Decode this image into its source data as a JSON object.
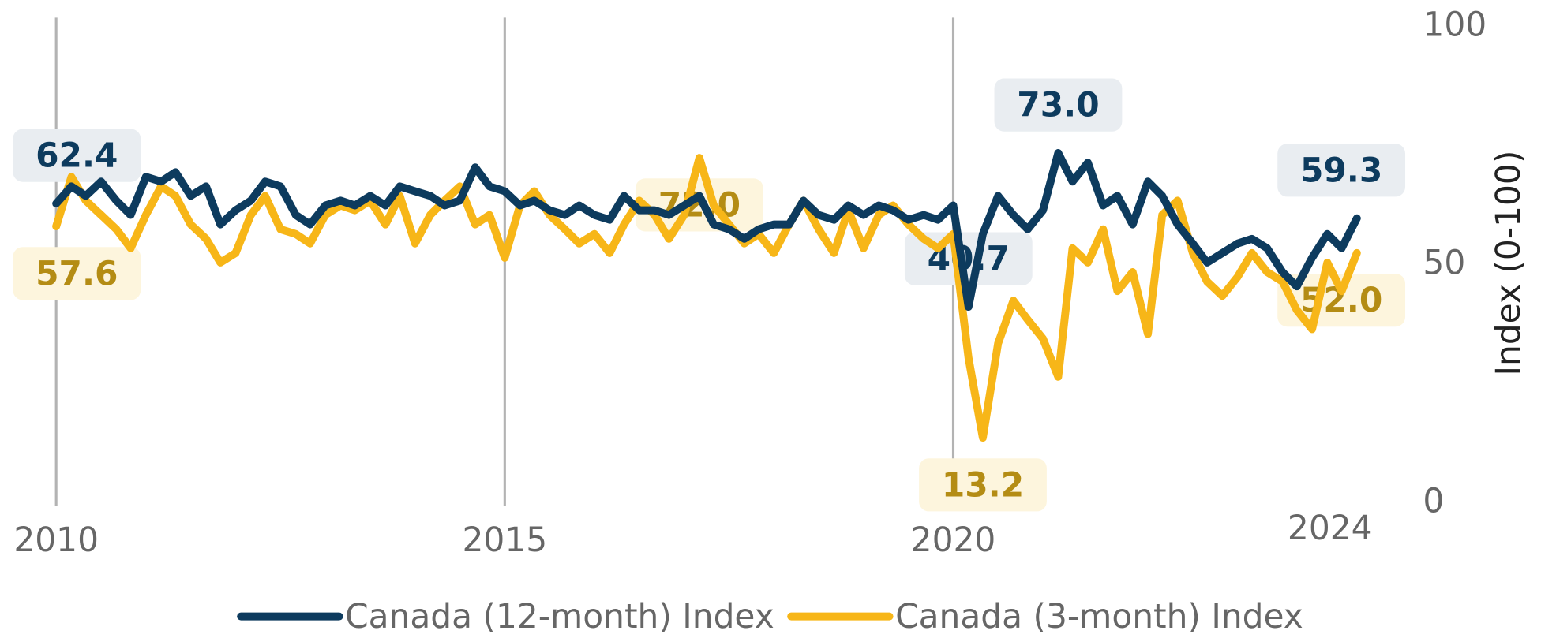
{
  "chart_data": {
    "type": "line",
    "y_axis_label": "Index (0-100)",
    "ylim": [
      0,
      100
    ],
    "yticks": [
      0,
      50,
      100
    ],
    "xlim": [
      2009.9,
      2024.9
    ],
    "xticks": [
      2010,
      2015,
      2020
    ],
    "grid": true,
    "legend": "bottom",
    "annotations": [
      {
        "text": "2024",
        "x": 2024.2
      }
    ],
    "x": [
      2010,
      2010.17,
      2010.33,
      2010.5,
      2010.67,
      2010.83,
      2011,
      2011.17,
      2011.33,
      2011.5,
      2011.67,
      2011.83,
      2012,
      2012.17,
      2012.33,
      2012.5,
      2012.67,
      2012.83,
      2013,
      2013.17,
      2013.33,
      2013.5,
      2013.67,
      2013.83,
      2014,
      2014.17,
      2014.33,
      2014.5,
      2014.67,
      2014.83,
      2015,
      2015.17,
      2015.33,
      2015.5,
      2015.67,
      2015.83,
      2016,
      2016.17,
      2016.33,
      2016.5,
      2016.67,
      2016.83,
      2017,
      2017.17,
      2017.33,
      2017.5,
      2017.67,
      2017.83,
      2018,
      2018.17,
      2018.33,
      2018.5,
      2018.67,
      2018.83,
      2019,
      2019.17,
      2019.33,
      2019.5,
      2019.67,
      2019.83,
      2020,
      2020.17,
      2020.33,
      2020.5,
      2020.67,
      2020.83,
      2021,
      2021.17,
      2021.33,
      2021.5,
      2021.67,
      2021.83,
      2022,
      2022.17,
      2022.33,
      2022.5,
      2022.67,
      2022.83,
      2023,
      2023.17,
      2023.33,
      2023.5,
      2023.67,
      2023.83,
      2024,
      2024.17,
      2024.33,
      2024.5
    ],
    "series": [
      {
        "name": "Canada (12-month) Index",
        "color": "#0d3b5e",
        "label_bg": "#e9edf1",
        "values": [
          62.4,
          66,
          64,
          67,
          63,
          60,
          68,
          67,
          69,
          64,
          66,
          58,
          61,
          63,
          67,
          66,
          60,
          58,
          62,
          63,
          62,
          64,
          62,
          66,
          65,
          64,
          62,
          63,
          70,
          66,
          65,
          62,
          63,
          61,
          60,
          62,
          60,
          59,
          64,
          61,
          61,
          60,
          62,
          64,
          58,
          57,
          55,
          57,
          58,
          58,
          63,
          60,
          59,
          62,
          60,
          62,
          61,
          59,
          60,
          59,
          62,
          40.7,
          56,
          64,
          60,
          57,
          61,
          73.0,
          67,
          71,
          62,
          64,
          58,
          67,
          64,
          58,
          54,
          50,
          52,
          54,
          55,
          53,
          48,
          45,
          51,
          56,
          53,
          59.3
        ],
        "value_labels": [
          "62.4",
          null,
          null,
          null,
          null,
          null,
          null,
          null,
          null,
          null,
          null,
          null,
          null,
          null,
          null,
          null,
          null,
          null,
          null,
          null,
          null,
          null,
          null,
          null,
          null,
          null,
          null,
          null,
          null,
          null,
          null,
          null,
          null,
          null,
          null,
          null,
          null,
          null,
          null,
          null,
          null,
          null,
          null,
          null,
          null,
          null,
          null,
          null,
          null,
          null,
          null,
          null,
          null,
          null,
          null,
          null,
          null,
          null,
          null,
          null,
          null,
          "40.7",
          null,
          null,
          null,
          null,
          null,
          "73.0",
          null,
          null,
          null,
          null,
          null,
          null,
          null,
          null,
          null,
          null,
          null,
          null,
          null,
          null,
          null,
          null,
          null,
          null,
          null,
          "59.3"
        ]
      },
      {
        "name": "Canada (3-month) Index",
        "color": "#f7b618",
        "label_bg": "#fdf5dd",
        "values": [
          57.6,
          68,
          63,
          60,
          57,
          53,
          60,
          66,
          64,
          58,
          55,
          50,
          52,
          60,
          64,
          57,
          56,
          54,
          60,
          62,
          61,
          63,
          58,
          64,
          54,
          60,
          63,
          66,
          58,
          60,
          51,
          62,
          65,
          60,
          57,
          54,
          56,
          52,
          58,
          63,
          60,
          55,
          60,
          72.0,
          62,
          58,
          54,
          56,
          52,
          58,
          63,
          57,
          52,
          61,
          53,
          60,
          62,
          58,
          55,
          53,
          56,
          30,
          13.2,
          33,
          42,
          38,
          34,
          26,
          53,
          50,
          57,
          44,
          48,
          35,
          60,
          63,
          52,
          46,
          43,
          47,
          52,
          48,
          46,
          40,
          36,
          50,
          44,
          52.0
        ],
        "value_labels": [
          "57.6",
          null,
          null,
          null,
          null,
          null,
          null,
          null,
          null,
          null,
          null,
          null,
          null,
          null,
          null,
          null,
          null,
          null,
          null,
          null,
          null,
          null,
          null,
          null,
          null,
          null,
          null,
          null,
          null,
          null,
          null,
          null,
          null,
          null,
          null,
          null,
          null,
          null,
          null,
          null,
          null,
          null,
          null,
          "72.0",
          null,
          null,
          null,
          null,
          null,
          null,
          null,
          null,
          null,
          null,
          null,
          null,
          null,
          null,
          null,
          null,
          null,
          null,
          "13.2",
          null,
          null,
          null,
          null,
          null,
          null,
          null,
          null,
          null,
          null,
          null,
          null,
          null,
          null,
          null,
          null,
          null,
          null,
          null,
          null,
          null,
          null,
          null,
          null,
          "52.0"
        ]
      }
    ]
  }
}
